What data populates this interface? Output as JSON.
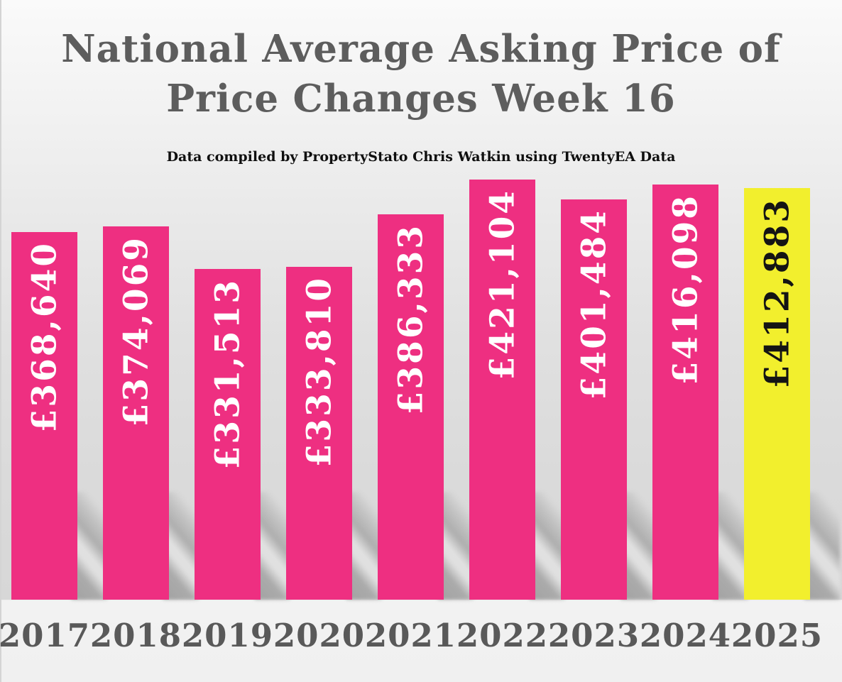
{
  "ui": {
    "title_lines": [
      "National Average Asking Price of",
      "Price Changes Week 16"
    ],
    "colors": {
      "bar": "#ee2f81",
      "highlight_bar": "#f2ef2d",
      "value_label_on_bar": "#ffffff",
      "value_label_on_highlight": "#141414",
      "title_text": "#5d5d5d",
      "axis_text": "#595959",
      "subtitle_text": "#0f0f0f"
    }
  },
  "chart_data": {
    "type": "bar",
    "title": "National Average Asking Price of Price Changes Week 16",
    "subtitle": "Data compiled by PropertyStato Chris Watkin using TwentyEA Data",
    "categories": [
      "2017",
      "2018",
      "2019",
      "2020",
      "2021",
      "2022",
      "2023",
      "2024",
      "2025"
    ],
    "values": [
      368640,
      374069,
      331513,
      333810,
      386333,
      421104,
      401484,
      416098,
      412883
    ],
    "value_labels": [
      "£368,640",
      "£374,069",
      "£331,513",
      "£333,810",
      "£386,333",
      "£421,104",
      "£401,484",
      "£416,098",
      "£412,883"
    ],
    "currency": "GBP",
    "highlight_index": 8,
    "bar_label_rotation_deg": -90,
    "xlabel": "",
    "ylabel": "",
    "ylim": [
      0,
      421104
    ],
    "grid": "off",
    "legend": "none"
  }
}
